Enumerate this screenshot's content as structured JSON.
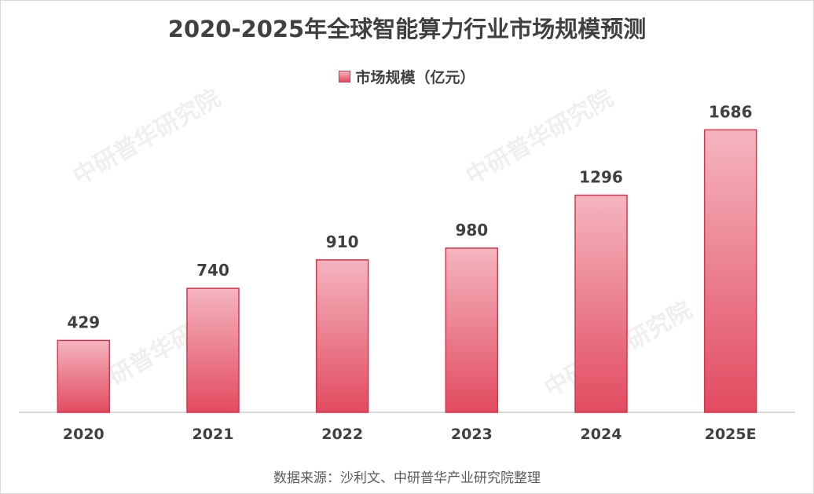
{
  "chart_data": {
    "type": "bar",
    "title": "2020-2025年全球智能算力行业市场规模预测",
    "categories": [
      "2020",
      "2021",
      "2022",
      "2023",
      "2024",
      "2025E"
    ],
    "series": [
      {
        "name": "市场规模（亿元）",
        "values": [
          429,
          740,
          910,
          980,
          1296,
          1686
        ]
      }
    ],
    "xlabel": "",
    "ylabel": "",
    "ylim": [
      0,
      1800
    ],
    "grid": false,
    "legend": "top-center",
    "data_labels": true,
    "colors": {
      "bar_top": "#f4b5bf",
      "bar_bottom": "#e24b60",
      "bar_border": "#d8344c",
      "text": "#404040",
      "axis": "#d9d9d9"
    }
  },
  "source": "数据来源：沙利文、中研普华产业研究院整理",
  "watermark": "www.ChinaIRN.COM 中研普华研究院"
}
